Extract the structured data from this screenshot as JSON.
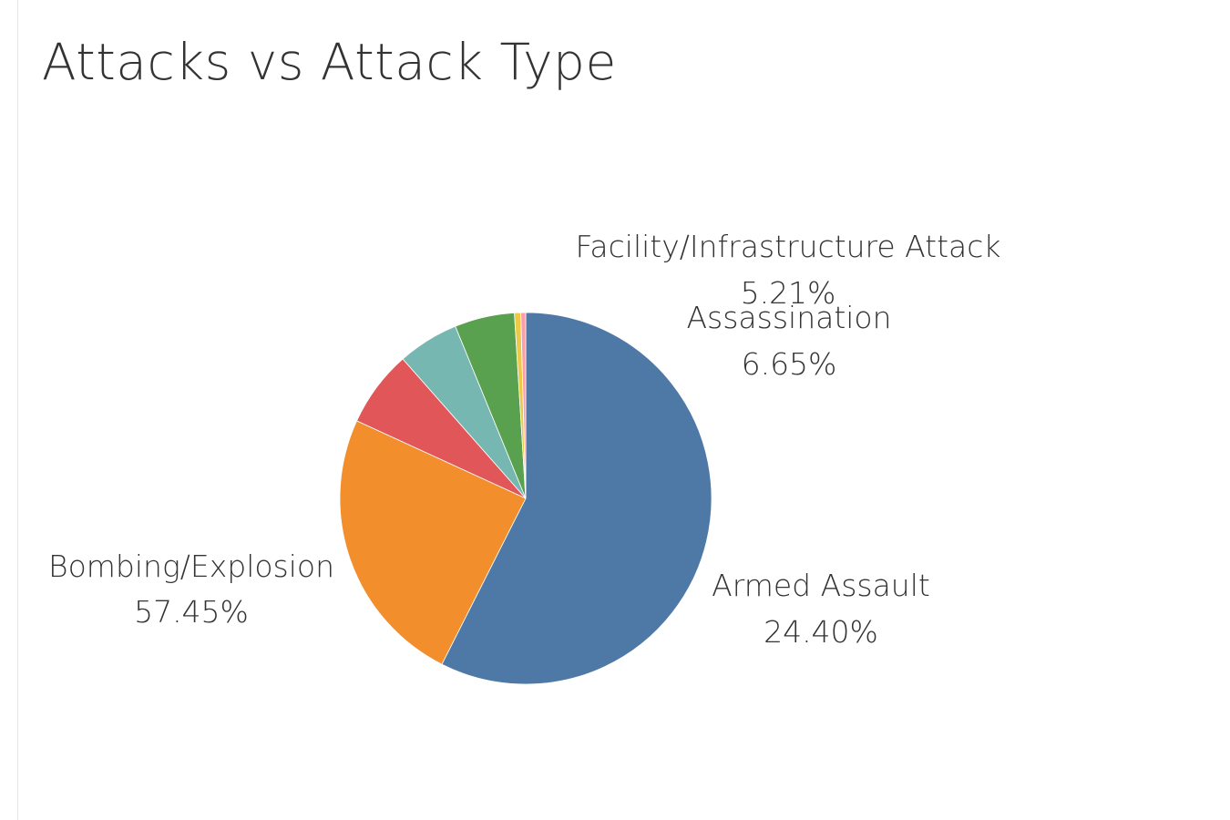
{
  "chart_data": {
    "type": "pie",
    "title": "Attacks vs Attack Type",
    "start_angle_deg": 0,
    "direction": "clockwise",
    "slices": [
      {
        "label": "Bombing/Explosion",
        "value": 57.45,
        "display": "57.45%",
        "color": "#4e79a7",
        "show_label": true
      },
      {
        "label": "Armed Assault",
        "value": 24.4,
        "display": "24.40%",
        "color": "#f28e2b",
        "show_label": true
      },
      {
        "label": "Assassination",
        "value": 6.65,
        "display": "6.65%",
        "color": "#e15759",
        "show_label": true
      },
      {
        "label": "",
        "value": 5.32,
        "display": "",
        "color": "#76b7b2",
        "show_label": false
      },
      {
        "label": "Facility/Infrastructure Attack",
        "value": 5.21,
        "display": "5.21%",
        "color": "#59a14f",
        "show_label": true
      },
      {
        "label": "",
        "value": 0.55,
        "display": "",
        "color": "#edc948",
        "show_label": false
      },
      {
        "label": "",
        "value": 0.42,
        "display": "",
        "color": "#ff9da7",
        "show_label": false
      }
    ]
  }
}
